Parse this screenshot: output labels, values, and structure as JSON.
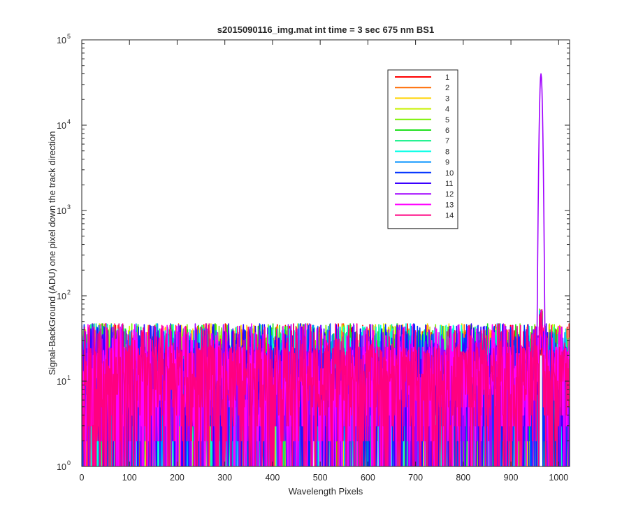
{
  "figure": {
    "title": "s2015090116_img.mat int time = 3 sec  675 nm BS1"
  },
  "chart_data": {
    "type": "line",
    "title": "s2015090116_img.mat int time = 3 sec  675 nm BS1",
    "xlabel": "Wavelength Pixels",
    "ylabel": "Signal-BackGround (ADU) one pixel down the track direction",
    "xlim": [
      0,
      1023
    ],
    "ylim": [
      1,
      100000
    ],
    "yscale": "log",
    "xticks": [
      0,
      100,
      200,
      300,
      400,
      500,
      600,
      700,
      800,
      900,
      1000
    ],
    "xtick_labels": [
      "0",
      "100",
      "200",
      "300",
      "400",
      "500",
      "600",
      "700",
      "800",
      "900",
      "1000"
    ],
    "yticks": [
      1,
      10,
      100,
      1000,
      10000,
      100000
    ],
    "ytick_labels": [
      {
        "base": "10",
        "exp": "0"
      },
      {
        "base": "10",
        "exp": "1"
      },
      {
        "base": "10",
        "exp": "2"
      },
      {
        "base": "10",
        "exp": "3"
      },
      {
        "base": "10",
        "exp": "4"
      },
      {
        "base": "10",
        "exp": "5"
      }
    ],
    "grid": false,
    "legend_position": "upper-right",
    "noise_floor": {
      "typical_range": [
        1,
        50
      ],
      "median": 10
    },
    "peak": {
      "x": 963,
      "y": 40000,
      "series": "12"
    },
    "series": [
      {
        "name": "1",
        "color": "#ff0000"
      },
      {
        "name": "2",
        "color": "#ff6a00"
      },
      {
        "name": "3",
        "color": "#ffd400"
      },
      {
        "name": "4",
        "color": "#c8f000"
      },
      {
        "name": "5",
        "color": "#78f000"
      },
      {
        "name": "6",
        "color": "#20e020"
      },
      {
        "name": "7",
        "color": "#00f080"
      },
      {
        "name": "8",
        "color": "#00ffe6"
      },
      {
        "name": "9",
        "color": "#0090ff"
      },
      {
        "name": "10",
        "color": "#0032ff"
      },
      {
        "name": "11",
        "color": "#3a00ff"
      },
      {
        "name": "12",
        "color": "#a000ff"
      },
      {
        "name": "13",
        "color": "#ff00ff"
      },
      {
        "name": "14",
        "color": "#ff0080"
      }
    ]
  }
}
